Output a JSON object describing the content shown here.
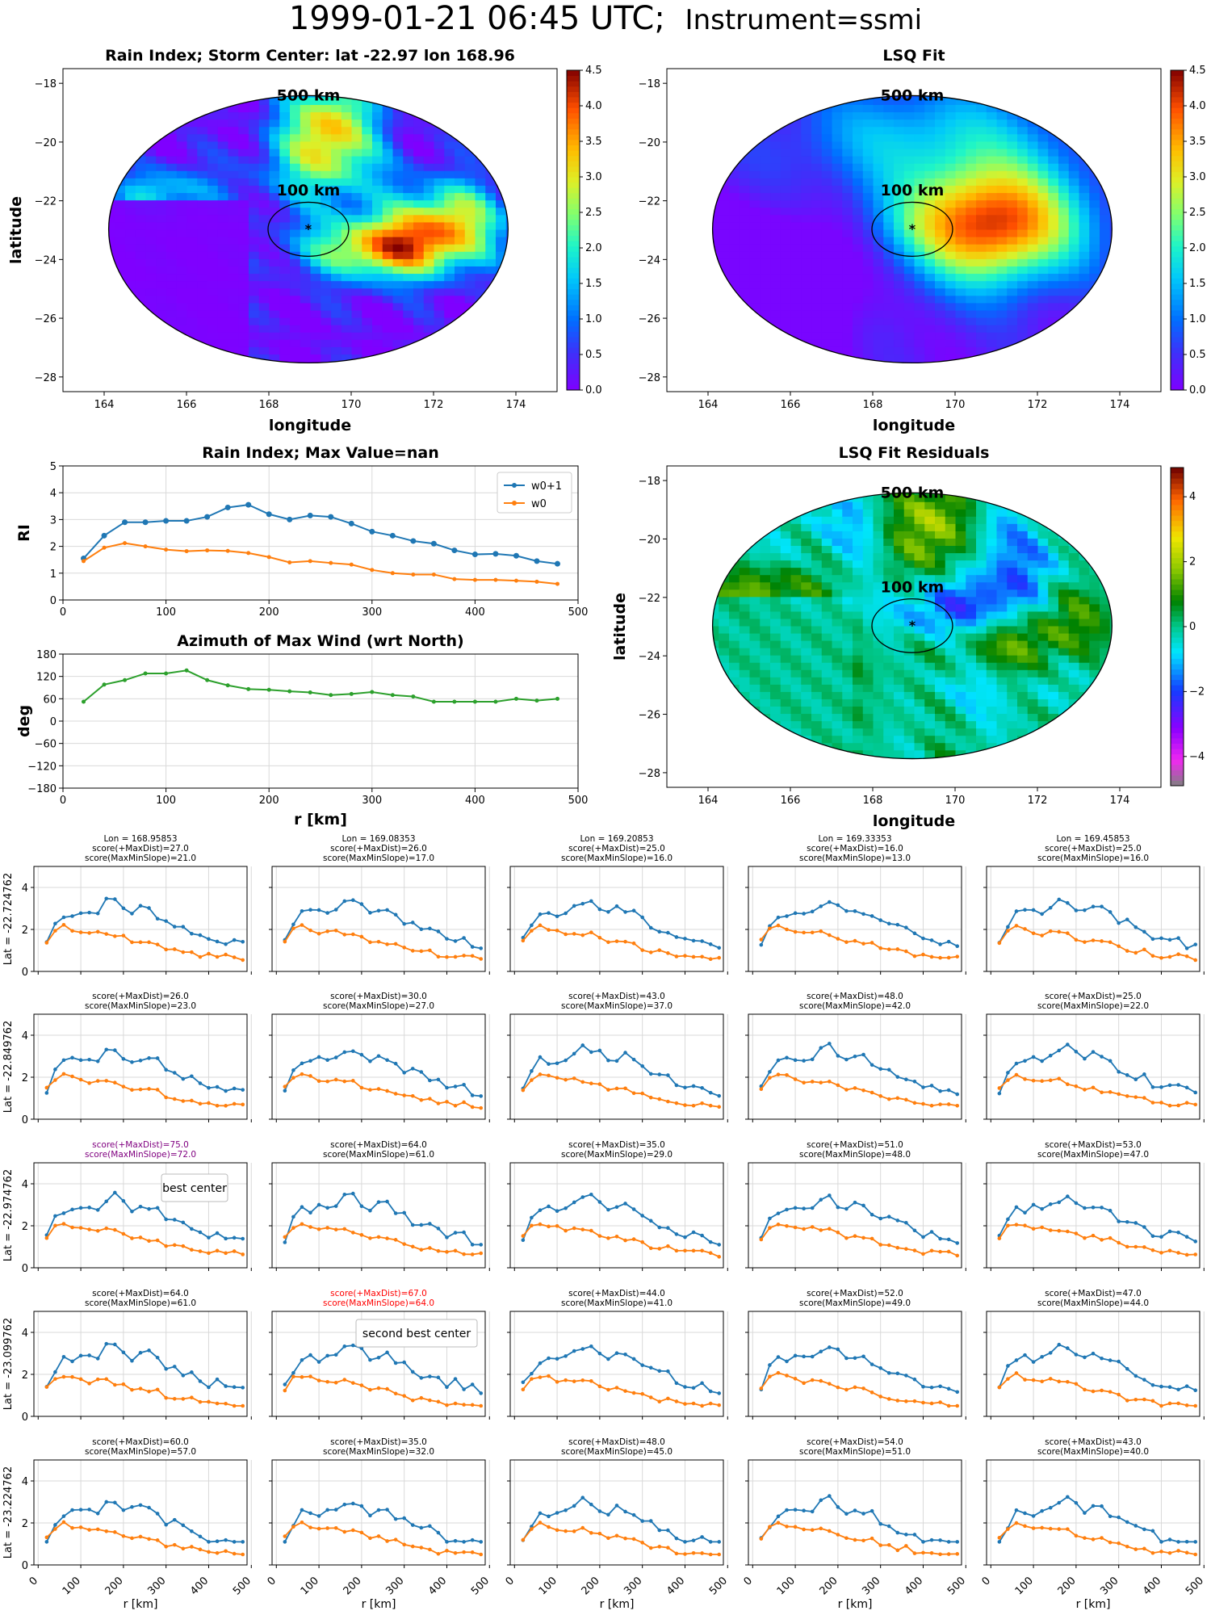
{
  "figure": {
    "title_main": "1999-01-21 06:45 UTC;",
    "title_instrument": "Instrument=ssmi"
  },
  "colors": {
    "w0p1": "#1f77b4",
    "w0": "#ff7f0e",
    "azimuth": "#2ca02c",
    "best": "#800080",
    "second": "#ff0000",
    "grid": "#d9d9d9"
  },
  "maps": {
    "rain": {
      "title": "Rain Index; Storm Center: lat -22.97 lon 168.96",
      "xlabel": "longitude",
      "ylabel": "latitude",
      "colorbar_ticks": [
        "0.0",
        "0.5",
        "1.0",
        "1.5",
        "2.0",
        "2.5",
        "3.0",
        "3.5",
        "4.0",
        "4.5"
      ]
    },
    "lsq": {
      "title": "LSQ Fit",
      "xlabel": "longitude",
      "colorbar_ticks": [
        "0.0",
        "0.5",
        "1.0",
        "1.5",
        "2.0",
        "2.5",
        "3.0",
        "3.5",
        "4.0",
        "4.5"
      ]
    },
    "resid": {
      "title": "LSQ Fit Residuals",
      "xlabel": "longitude",
      "ylabel": "latitude",
      "colorbar_ticks": [
        "−4",
        "−2",
        "0",
        "2",
        "4"
      ]
    },
    "storm_center": {
      "lon": 168.96,
      "lat": -22.97
    },
    "ring_labels": [
      "500 km",
      "100 km"
    ],
    "xticks": [
      164,
      166,
      168,
      170,
      172,
      174
    ],
    "yticks": [
      -18,
      -20,
      -22,
      -24,
      -26,
      -28
    ],
    "xlim": [
      163,
      175
    ],
    "ylim": [
      -28.5,
      -17.5
    ]
  },
  "chart_data": [
    {
      "type": "line",
      "title": "Rain Index; Max Value=nan",
      "ylabel": "RI",
      "xlabel": "",
      "xlim": [
        0,
        500
      ],
      "ylim": [
        0,
        5
      ],
      "legend": "top-right",
      "x": [
        20,
        40,
        60,
        80,
        100,
        120,
        140,
        160,
        180,
        200,
        220,
        240,
        260,
        280,
        300,
        320,
        340,
        360,
        380,
        400,
        420,
        440,
        460,
        480
      ],
      "series": [
        {
          "name": "w0+1",
          "values": [
            1.55,
            2.4,
            2.9,
            2.9,
            2.95,
            2.95,
            3.1,
            3.45,
            3.55,
            3.2,
            3.0,
            3.15,
            3.1,
            2.85,
            2.55,
            2.4,
            2.2,
            2.1,
            1.85,
            1.7,
            1.72,
            1.65,
            1.45,
            1.35
          ]
        },
        {
          "name": "w0",
          "values": [
            1.45,
            1.95,
            2.12,
            2.0,
            1.88,
            1.82,
            1.85,
            1.83,
            1.75,
            1.6,
            1.4,
            1.45,
            1.38,
            1.32,
            1.12,
            1.0,
            0.95,
            0.95,
            0.78,
            0.75,
            0.75,
            0.72,
            0.68,
            0.6
          ]
        }
      ]
    },
    {
      "type": "line",
      "title": "Azimuth of Max Wind (wrt North)",
      "ylabel": "deg",
      "xlabel": "r [km]",
      "xlim": [
        0,
        500
      ],
      "ylim": [
        -180,
        180
      ],
      "x": [
        20,
        40,
        60,
        80,
        100,
        120,
        140,
        160,
        180,
        200,
        220,
        240,
        260,
        280,
        300,
        320,
        340,
        360,
        380,
        400,
        420,
        440,
        460,
        480
      ],
      "series": [
        {
          "name": "",
          "values": [
            52,
            98,
            110,
            128,
            128,
            136,
            110,
            96,
            86,
            84,
            80,
            77,
            70,
            73,
            78,
            70,
            66,
            52,
            52,
            52,
            52,
            60,
            55,
            60
          ]
        }
      ]
    }
  ],
  "grid": {
    "xlabel": "r [km]",
    "xticks": [
      "0",
      "100",
      "200",
      "300",
      "400",
      "500"
    ],
    "yticks": [
      "0",
      "2",
      "4"
    ],
    "lon_labels": [
      "Lon = 168.95853",
      "Lon = 169.08353",
      "Lon = 169.20853",
      "Lon = 169.33353",
      "Lon = 169.45853"
    ],
    "lat_labels": [
      "Lat = -22.724762",
      "Lat = -22.849762",
      "Lat = -22.974762",
      "Lat = -23.099762",
      "Lat = -23.224762"
    ],
    "annotations": {
      "best": "best center",
      "second": "second best center"
    },
    "scores": [
      [
        [
          "score(+MaxDist)=27.0",
          "score(MaxMinSlope)=21.0"
        ],
        [
          "score(+MaxDist)=26.0",
          "score(MaxMinSlope)=17.0"
        ],
        [
          "score(+MaxDist)=25.0",
          "score(MaxMinSlope)=16.0"
        ],
        [
          "score(+MaxDist)=16.0",
          "score(MaxMinSlope)=13.0"
        ],
        [
          "score(+MaxDist)=25.0",
          "score(MaxMinSlope)=16.0"
        ]
      ],
      [
        [
          "score(+MaxDist)=26.0",
          "score(MaxMinSlope)=23.0"
        ],
        [
          "score(+MaxDist)=30.0",
          "score(MaxMinSlope)=27.0"
        ],
        [
          "score(+MaxDist)=43.0",
          "score(MaxMinSlope)=37.0"
        ],
        [
          "score(+MaxDist)=48.0",
          "score(MaxMinSlope)=42.0"
        ],
        [
          "score(+MaxDist)=25.0",
          "score(MaxMinSlope)=22.0"
        ]
      ],
      [
        [
          "score(+MaxDist)=75.0",
          "score(MaxMinSlope)=72.0"
        ],
        [
          "score(+MaxDist)=64.0",
          "score(MaxMinSlope)=61.0"
        ],
        [
          "score(+MaxDist)=35.0",
          "score(MaxMinSlope)=29.0"
        ],
        [
          "score(+MaxDist)=51.0",
          "score(MaxMinSlope)=48.0"
        ],
        [
          "score(+MaxDist)=53.0",
          "score(MaxMinSlope)=47.0"
        ]
      ],
      [
        [
          "score(+MaxDist)=64.0",
          "score(MaxMinSlope)=61.0"
        ],
        [
          "score(+MaxDist)=67.0",
          "score(MaxMinSlope)=64.0"
        ],
        [
          "score(+MaxDist)=44.0",
          "score(MaxMinSlope)=41.0"
        ],
        [
          "score(+MaxDist)=52.0",
          "score(MaxMinSlope)=49.0"
        ],
        [
          "score(+MaxDist)=47.0",
          "score(MaxMinSlope)=44.0"
        ]
      ],
      [
        [
          "score(+MaxDist)=60.0",
          "score(MaxMinSlope)=57.0"
        ],
        [
          "score(+MaxDist)=35.0",
          "score(MaxMinSlope)=32.0"
        ],
        [
          "score(+MaxDist)=48.0",
          "score(MaxMinSlope)=45.0"
        ],
        [
          "score(+MaxDist)=54.0",
          "score(MaxMinSlope)=51.0"
        ],
        [
          "score(+MaxDist)=43.0",
          "score(MaxMinSlope)=40.0"
        ]
      ]
    ]
  }
}
